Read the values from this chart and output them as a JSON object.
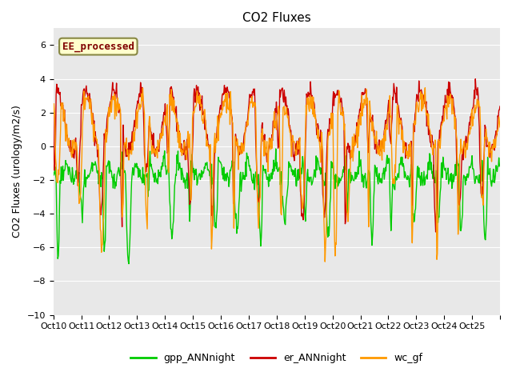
{
  "title": "CO2 Fluxes",
  "ylabel": "CO2 Fluxes (urology/m2/s)",
  "xlabel": "",
  "ylim": [
    -10,
    7
  ],
  "yticks": [
    -10,
    -8,
    -6,
    -4,
    -2,
    0,
    2,
    4,
    6
  ],
  "plot_bg_color": "#e8e8e8",
  "gpp_color": "#00cc00",
  "er_color": "#cc0000",
  "wc_color": "#ff9900",
  "legend_label": "EE_processed",
  "legend_text_color": "#800000",
  "legend_bg": "#ffffcc",
  "legend_border": "#888844",
  "series_labels": [
    "gpp_ANNnight",
    "er_ANNnight",
    "wc_gf"
  ],
  "n_points": 800,
  "xtick_positions": [
    0,
    1,
    2,
    3,
    4,
    5,
    6,
    7,
    8,
    9,
    10,
    11,
    12,
    13,
    14,
    15,
    16
  ],
  "xtick_labels": [
    "Oct 10",
    "Oct 11",
    "Oct 12",
    "Oct 13",
    "Oct 14",
    "Oct 15",
    "Oct 16",
    "Oct 17",
    "Oct 18",
    "Oct 19",
    "Oct 20",
    "Oct 21",
    "Oct 22",
    "Oct 23",
    "Oct 24",
    "Oct 25",
    ""
  ],
  "seed": 42
}
